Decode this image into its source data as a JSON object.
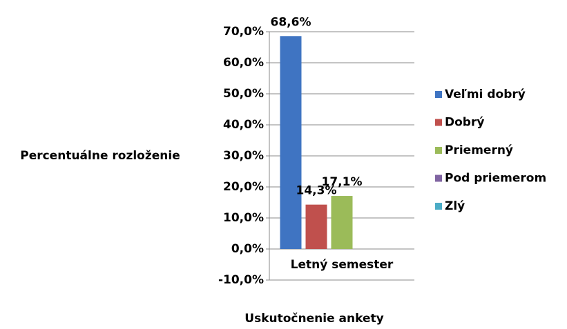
{
  "chart_data": {
    "type": "bar",
    "categories": [
      "Letný semester"
    ],
    "series": [
      {
        "name": "Veľmi dobrý",
        "color": "#3f74c2",
        "values": [
          68.6
        ],
        "value_labels": [
          "68,6%"
        ]
      },
      {
        "name": "Dobrý",
        "color": "#c0504d",
        "values": [
          14.3
        ],
        "value_labels": [
          "14,3%"
        ]
      },
      {
        "name": "Priemerný",
        "color": "#9bbb59",
        "values": [
          17.1
        ],
        "value_labels": [
          "17,1%"
        ]
      },
      {
        "name": "Pod priemerom",
        "color": "#8064a2",
        "values": [
          0
        ]
      },
      {
        "name": "Zlý",
        "color": "#4bacc6",
        "values": [
          0
        ]
      }
    ],
    "ylabel": "Percentuálne rozloženie",
    "xlabel": "Uskutočnenie ankety",
    "ylim": [
      -10,
      70
    ],
    "yticks": [
      {
        "value": -10,
        "label": "-10,0%"
      },
      {
        "value": 0,
        "label": "0,0%"
      },
      {
        "value": 10,
        "label": "10,0%"
      },
      {
        "value": 20,
        "label": "20,0%"
      },
      {
        "value": 30,
        "label": "30,0%"
      },
      {
        "value": 40,
        "label": "40,0%"
      },
      {
        "value": 50,
        "label": "50,0%"
      },
      {
        "value": 60,
        "label": "60,0%"
      },
      {
        "value": 70,
        "label": "70,0%"
      }
    ],
    "grid": true,
    "legend": "right"
  }
}
